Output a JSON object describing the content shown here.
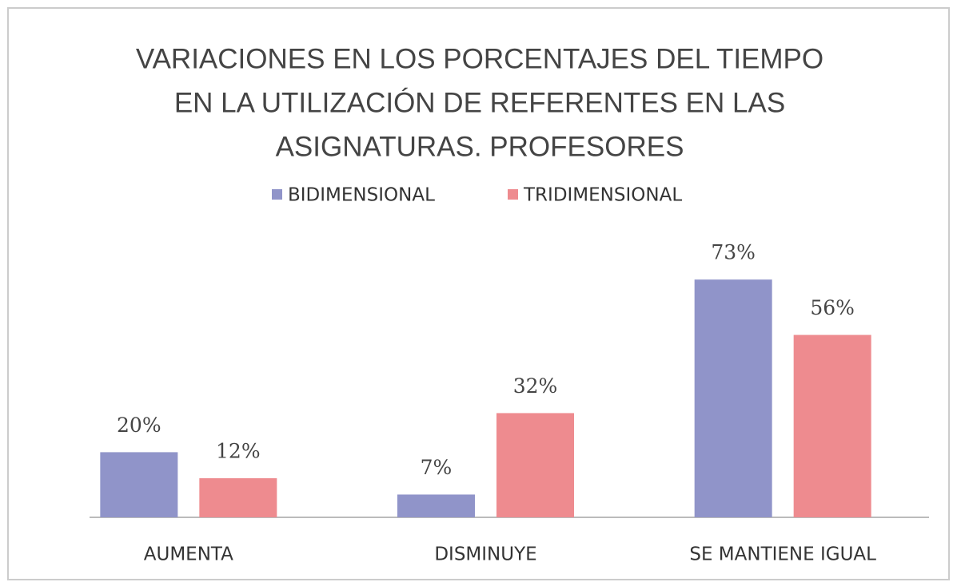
{
  "chart_data": {
    "type": "bar",
    "title": [
      "VARIACIONES EN LOS PORCENTAJES DEL TIEMPO",
      "EN LA UTILIZACIÓN DE REFERENTES EN LAS",
      "ASIGNATURAS. PROFESORES"
    ],
    "categories": [
      "AUMENTA",
      "DISMINUYE",
      "SE MANTIENE IGUAL"
    ],
    "series": [
      {
        "name": "BIDIMENSIONAL",
        "color": "#9094c9",
        "values": [
          20,
          7,
          73
        ],
        "value_labels": [
          "20%",
          "7%",
          "73%"
        ]
      },
      {
        "name": "TRIDIMENSIONAL",
        "color": "#ee8b8f",
        "values": [
          12,
          32,
          56
        ],
        "value_labels": [
          "12%",
          "32%",
          "56%"
        ]
      }
    ],
    "legend": "top"
  }
}
